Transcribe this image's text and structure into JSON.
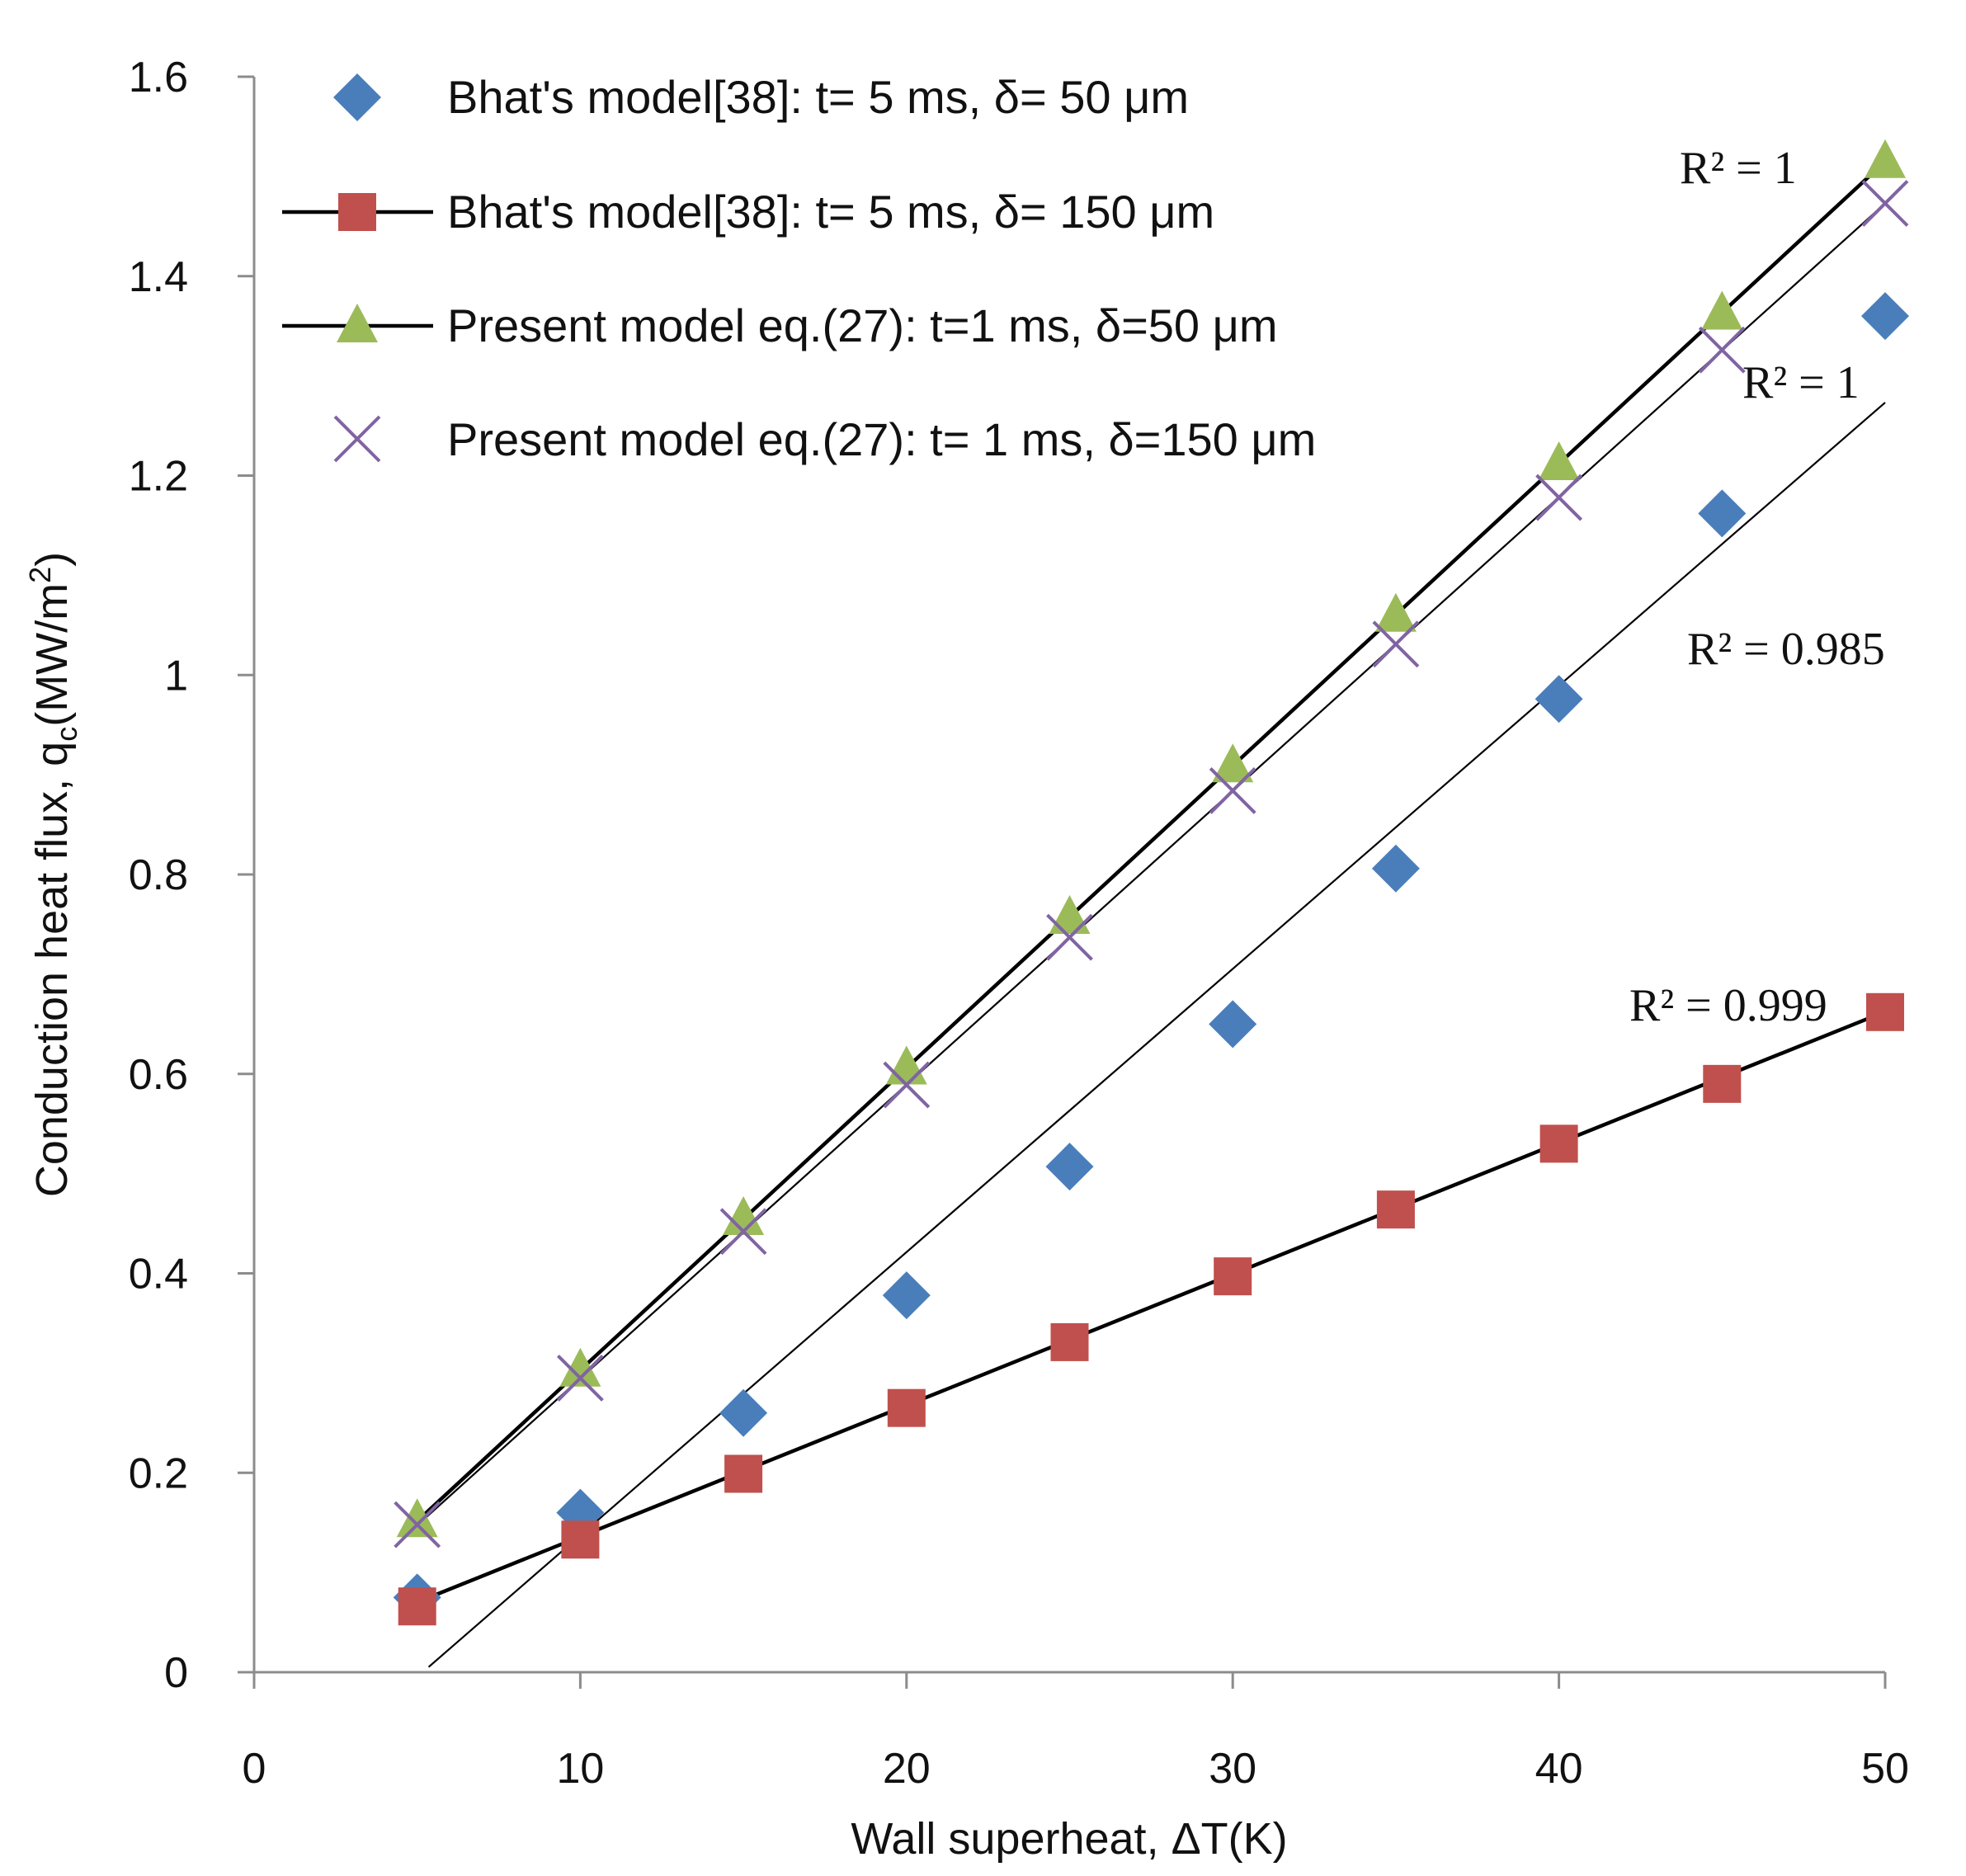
{
  "chart_data": {
    "type": "scatter",
    "xlabel": "Wall superheat, ΔT(K)",
    "ylabel_main": "Conduction  heat flux, q",
    "ylabel_sub": "c",
    "ylabel_unit": "(MW/m",
    "ylabel_sup": "2",
    "ylabel_end": ")",
    "xlim": [
      0,
      50
    ],
    "ylim": [
      0,
      1.6
    ],
    "x_ticks": [
      0,
      10,
      20,
      30,
      40,
      50
    ],
    "y_ticks": [
      0,
      0.2,
      0.4,
      0.6,
      0.8,
      1,
      1.2,
      1.4,
      1.6
    ],
    "x_tick_labels": [
      "0",
      "10",
      "20",
      "30",
      "40",
      "50"
    ],
    "y_tick_labels": [
      "0",
      "0.2",
      "0.4",
      "0.6",
      "0.8",
      "1",
      "1.2",
      "1.4",
      "1.6"
    ],
    "grid": false,
    "legend_position": "top-left",
    "series": [
      {
        "name": "Bhat's model[38]: t= 5 ms, δ= 50 μm",
        "marker": "diamond",
        "color": "#4a7ebb",
        "x": [
          5,
          10,
          15,
          20,
          25,
          30,
          35,
          40,
          45,
          50
        ],
        "y": [
          0.075,
          0.16,
          0.26,
          0.378,
          0.507,
          0.65,
          0.806,
          0.976,
          1.162,
          1.36
        ],
        "trendline": {
          "slope": 0.0284,
          "intercept": -0.1467,
          "x_range": [
            5.35,
            50
          ],
          "width": 2.2
        },
        "r2_label": "R² = 0.985"
      },
      {
        "name": "Bhat's model[38]: t= 5 ms, δ= 150 μm",
        "marker": "square",
        "color": "#c0504d",
        "x": [
          5,
          10,
          15,
          20,
          25,
          30,
          35,
          40,
          45,
          50
        ],
        "y": [
          0.066,
          0.133,
          0.199,
          0.265,
          0.331,
          0.397,
          0.464,
          0.53,
          0.59,
          0.662
        ],
        "trendline": {
          "slope": 0.01316,
          "intercept": 0.0044,
          "x_range": [
            5,
            50
          ],
          "width": 4.5
        },
        "r2_label": "R² = 0.999"
      },
      {
        "name": "Present model eq.(27): t=1 ms, δ=50 μm",
        "marker": "triangle",
        "color": "#9bbb59",
        "x": [
          5,
          10,
          15,
          20,
          25,
          30,
          35,
          40,
          45,
          50
        ],
        "y": [
          0.152,
          0.303,
          0.455,
          0.606,
          0.757,
          0.909,
          1.06,
          1.212,
          1.363,
          1.515
        ],
        "trendline": {
          "slope": 0.0303,
          "intercept": 0.0,
          "x_range": [
            5,
            50
          ],
          "width": 4.5
        },
        "r2_label": "R² = 1"
      },
      {
        "name": "Present model eq.(27): t= 1 ms, δ=150 μm",
        "marker": "x",
        "color": "#8064a2",
        "x": [
          5,
          10,
          15,
          20,
          25,
          30,
          35,
          40,
          45,
          50
        ],
        "y": [
          0.148,
          0.295,
          0.442,
          0.589,
          0.737,
          0.884,
          1.031,
          1.178,
          1.326,
          1.473
        ],
        "trendline": {
          "slope": 0.02946,
          "intercept": 0.0,
          "x_range": [
            5,
            50
          ],
          "width": 2.2
        },
        "r2_label": "R² = 1"
      }
    ]
  }
}
